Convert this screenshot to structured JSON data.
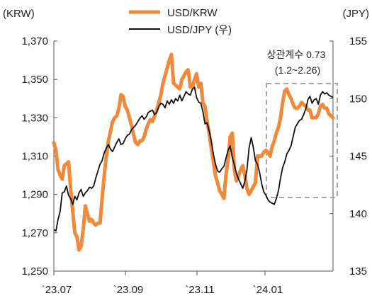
{
  "chart_data": {
    "type": "line",
    "left_axis_label": "(KRW)",
    "right_axis_label": "(JPY)",
    "left_ylim": [
      1250,
      1370
    ],
    "right_ylim": [
      135,
      155
    ],
    "left_ticks": [
      "1,370",
      "1,350",
      "1,330",
      "1,310",
      "1,290",
      "1,270",
      "1,250"
    ],
    "right_ticks": [
      "155",
      "150",
      "145",
      "140",
      "135"
    ],
    "x_tick_labels": [
      "`23.07",
      "`23.09",
      "`23.11",
      "`24.01"
    ],
    "grid": false,
    "legend_position": "top",
    "annotation": {
      "line1": "상관계수 0.73",
      "line2": "(1.2~2.26)"
    },
    "series": [
      {
        "name": "USD/KRW",
        "axis": "left",
        "color": "#f0893a",
        "values": [
          1317,
          1313,
          1303,
          1300,
          1298,
          1305,
          1306,
          1307,
          1293,
          1281,
          1270,
          1268,
          1261,
          1263,
          1272,
          1284,
          1280,
          1276,
          1277,
          1275,
          1274,
          1275,
          1275,
          1288,
          1300,
          1310,
          1318,
          1323,
          1328,
          1330,
          1331,
          1335,
          1342,
          1341,
          1336,
          1334,
          1330,
          1326,
          1321,
          1317,
          1316,
          1318,
          1318,
          1320,
          1324,
          1327,
          1329,
          1328,
          1331,
          1334,
          1338,
          1342,
          1348,
          1352,
          1356,
          1360,
          1363,
          1348,
          1347,
          1346,
          1345,
          1350,
          1352,
          1354,
          1355,
          1346,
          1346,
          1350,
          1353,
          1346,
          1348,
          1338,
          1336,
          1328,
          1322,
          1314,
          1307,
          1300,
          1296,
          1292,
          1290,
          1288,
          1300,
          1308,
          1320,
          1322,
          1303,
          1297,
          1300,
          1303,
          1305,
          1300,
          1293,
          1290,
          1292,
          1294,
          1296,
          1310,
          1310,
          1310,
          1312,
          1313,
          1312,
          1310,
          1315,
          1318,
          1322,
          1325,
          1330,
          1338,
          1344,
          1345,
          1342,
          1340,
          1337,
          1335,
          1335,
          1336,
          1338,
          1337,
          1336,
          1334,
          1334,
          1330,
          1330,
          1330,
          1332,
          1336,
          1337,
          1335,
          1335,
          1332,
          1331,
          1330
        ]
      },
      {
        "name": "USD/JPY (우)",
        "axis": "right",
        "color": "#111111",
        "values": [
          138.6,
          138.5,
          139.5,
          140.2,
          141.8,
          141.9,
          142.4,
          141.6,
          141.3,
          140.8,
          141.5,
          141.2,
          141.8,
          142.1,
          141.5,
          141.8,
          142.0,
          142.3,
          142.2,
          142.4,
          143.1,
          143.7,
          144.3,
          144.6,
          145.3,
          145.7,
          146.0,
          145.6,
          145.4,
          145.8,
          146.2,
          146.5,
          146.0,
          146.1,
          146.5,
          146.8,
          146.9,
          147.3,
          147.5,
          147.7,
          148.0,
          148.3,
          148.5,
          148.2,
          148.4,
          148.8,
          148.9,
          149.0,
          148.6,
          148.8,
          149.3,
          149.6,
          149.5,
          149.2,
          149.8,
          149.5,
          149.9,
          149.6,
          150.0,
          149.8,
          150.3,
          149.8,
          150.2,
          150.6,
          150.4,
          150.3,
          150.8,
          151.0,
          150.1,
          149.7,
          149.6,
          148.9,
          147.8,
          147.9,
          147.2,
          146.3,
          145.2,
          144.3,
          143.7,
          143.6,
          143.9,
          144.1,
          144.8,
          145.5,
          145.9,
          144.9,
          144.2,
          143.5,
          143.0,
          142.6,
          142.2,
          142.8,
          143.8,
          145.7,
          146.6,
          145.8,
          144.6,
          144.3,
          143.6,
          142.6,
          141.9,
          141.6,
          141.2,
          141.0,
          140.9,
          140.8,
          141.3,
          142.0,
          143.1,
          144.0,
          144.5,
          145.2,
          145.5,
          145.9,
          146.7,
          147.5,
          147.8,
          148.1,
          148.2,
          148.6,
          149.1,
          149.9,
          150.2,
          149.6,
          149.9,
          150.0,
          149.5,
          150.3,
          150.6,
          150.4,
          150.5,
          150.3,
          150.2,
          150.1
        ]
      }
    ]
  }
}
